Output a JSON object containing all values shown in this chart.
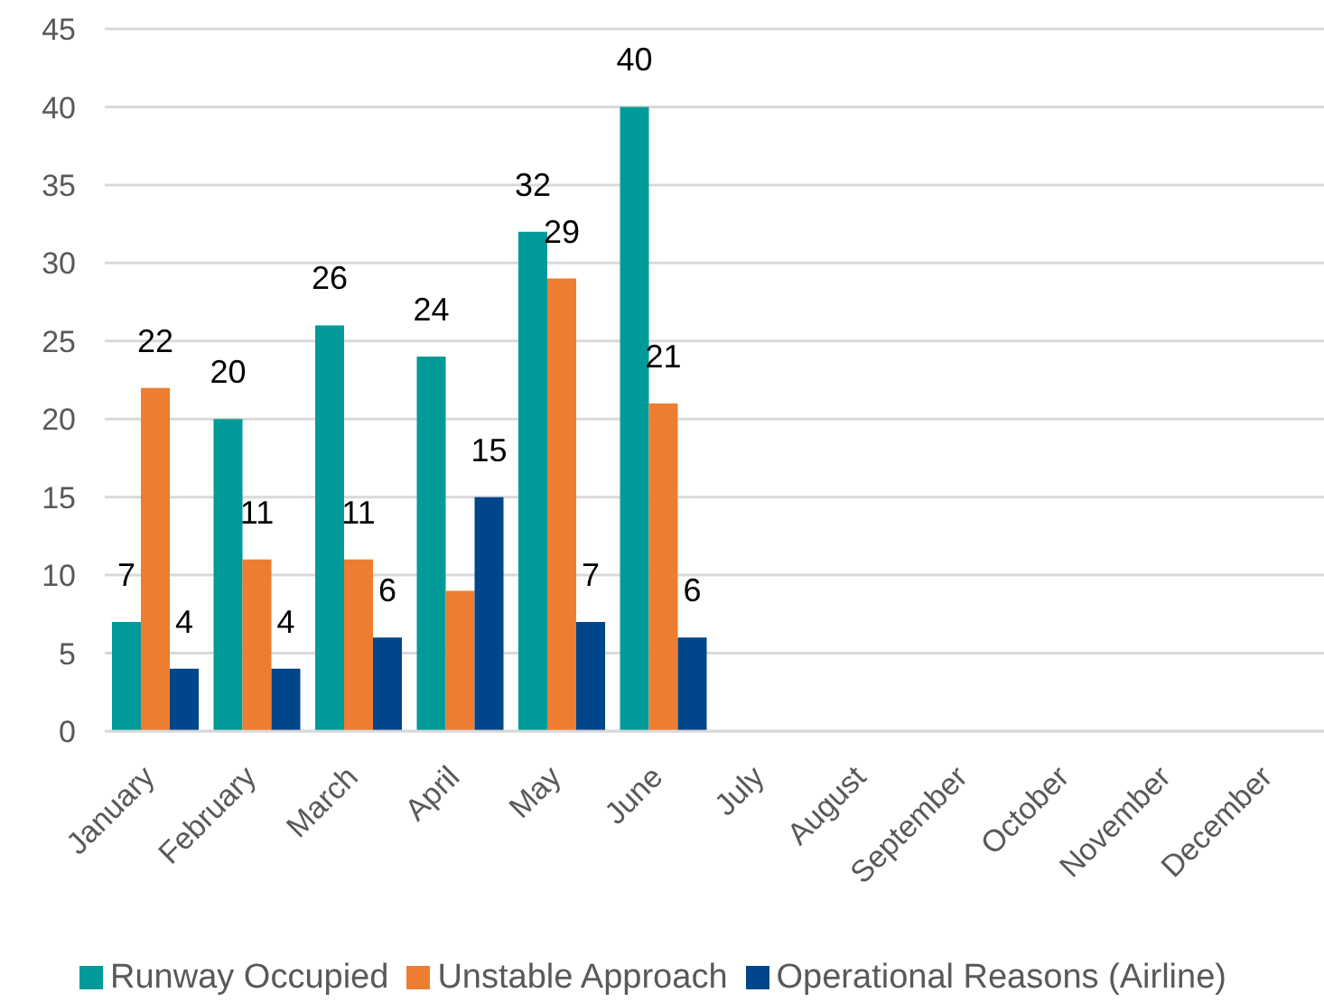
{
  "chart_data": {
    "type": "bar",
    "categories": [
      "January",
      "February",
      "March",
      "April",
      "May",
      "June",
      "July",
      "August",
      "September",
      "October",
      "November",
      "December"
    ],
    "series": [
      {
        "name": "Runway Occupied",
        "color": "#009b98",
        "values": [
          7,
          20,
          26,
          24,
          32,
          40,
          null,
          null,
          null,
          null,
          null,
          null
        ],
        "value_labels": [
          "7",
          "20",
          "26",
          "24",
          "32",
          "40",
          null,
          null,
          null,
          null,
          null,
          null
        ]
      },
      {
        "name": "Unstable Approach",
        "color": "#ed7d31",
        "values": [
          22,
          11,
          11,
          9,
          29,
          21,
          null,
          null,
          null,
          null,
          null,
          null
        ],
        "value_labels": [
          "22",
          "11",
          "11",
          null,
          "29",
          "21",
          null,
          null,
          null,
          null,
          null,
          null
        ]
      },
      {
        "name": "Operational Reasons (Airline)",
        "color": "#00468b",
        "values": [
          4,
          4,
          6,
          15,
          7,
          6,
          null,
          null,
          null,
          null,
          null,
          null
        ],
        "value_labels": [
          "4",
          "4",
          "6",
          "15",
          "7",
          "6",
          null,
          null,
          null,
          null,
          null,
          null
        ]
      }
    ],
    "ylim": [
      0,
      45
    ],
    "yticks": [
      0,
      5,
      10,
      15,
      20,
      25,
      30,
      35,
      40,
      45
    ],
    "grid": "y",
    "legend": "bottom"
  }
}
